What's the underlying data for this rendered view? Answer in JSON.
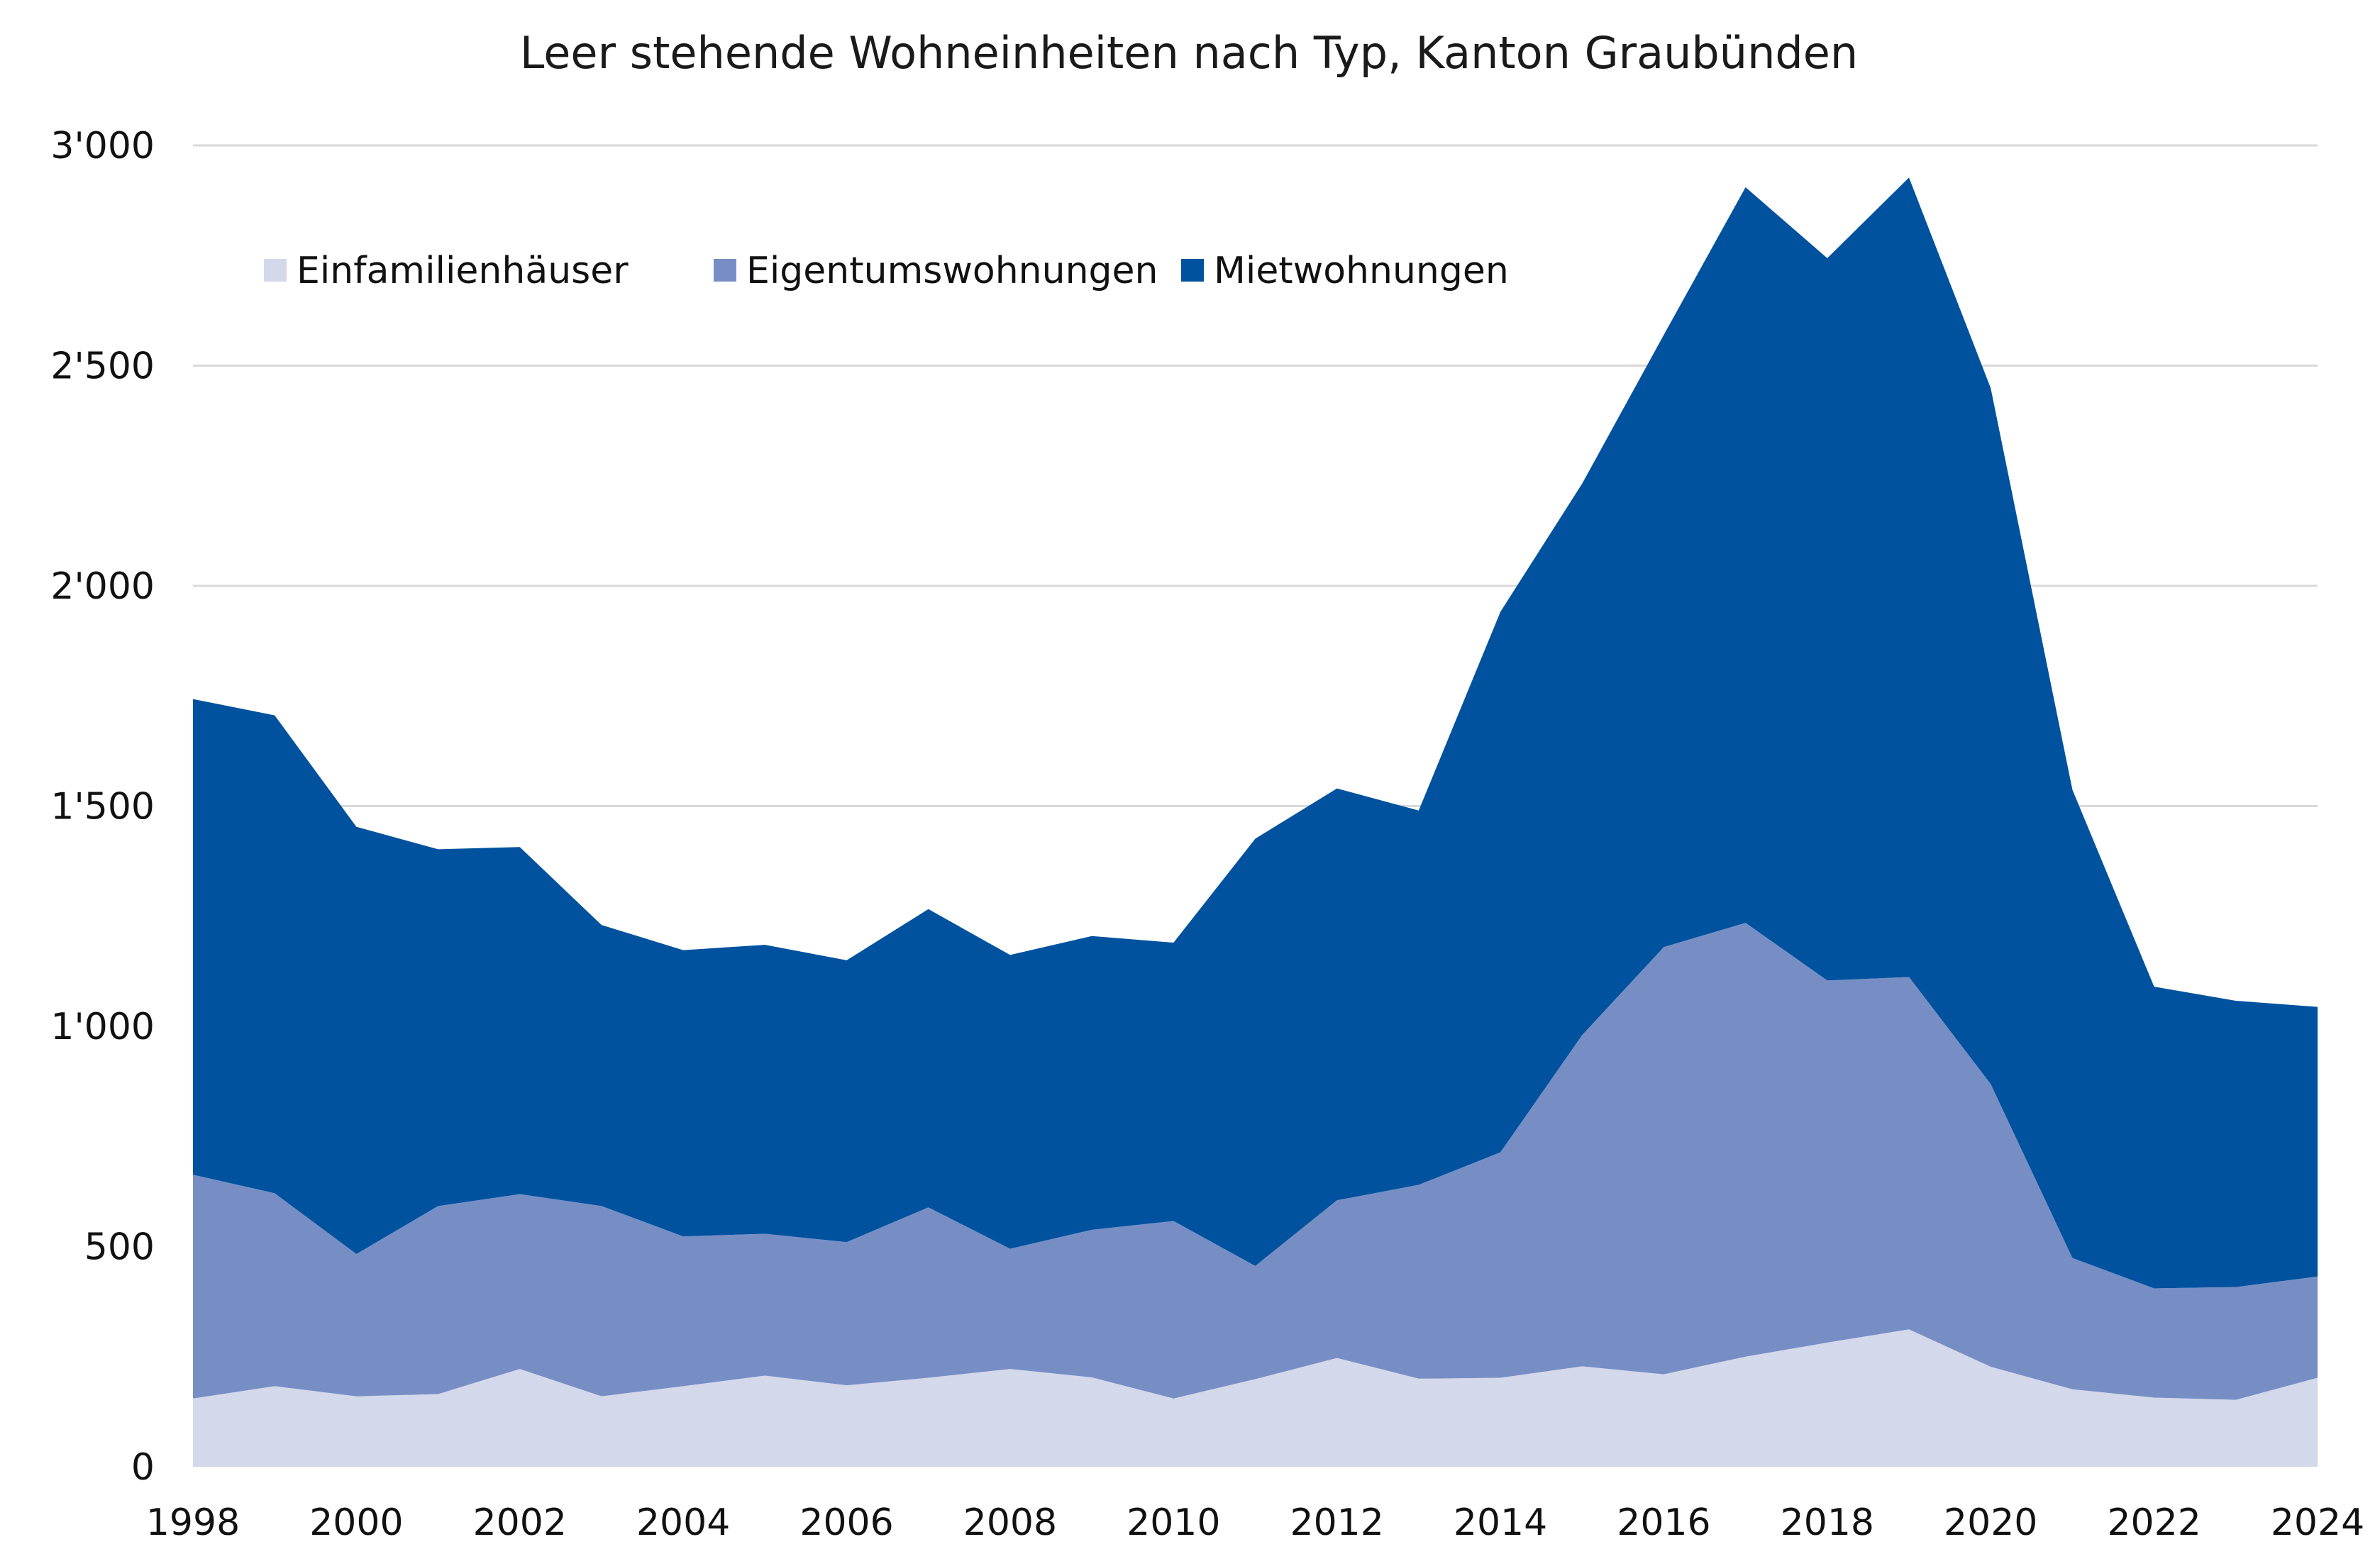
{
  "chart_data": {
    "type": "area",
    "stacked": true,
    "title": "Leer stehende Wohneinheiten nach Typ, Kanton Graubünden",
    "xlabel": "",
    "ylabel": "",
    "ylim": [
      0,
      3000
    ],
    "xlim": [
      1998,
      2024
    ],
    "grid": "horizontal",
    "legend_position": "top-left",
    "y_ticks": [
      0,
      500,
      1000,
      1500,
      2000,
      2500,
      3000
    ],
    "y_tick_labels": [
      "0",
      "500",
      "1'000",
      "1'500",
      "2'000",
      "2'500",
      "3'000"
    ],
    "x_ticks": [
      1998,
      2000,
      2002,
      2004,
      2006,
      2008,
      2010,
      2012,
      2014,
      2016,
      2018,
      2020,
      2022,
      2024
    ],
    "x_tick_labels": [
      "1998",
      "2000",
      "2002",
      "2004",
      "2006",
      "2008",
      "2010",
      "2012",
      "2014",
      "2016",
      "2018",
      "2020",
      "2022",
      "2024"
    ],
    "x": [
      1998,
      1999,
      2000,
      2001,
      2002,
      2003,
      2004,
      2005,
      2006,
      2007,
      2008,
      2009,
      2010,
      2011,
      2012,
      2013,
      2014,
      2015,
      2016,
      2017,
      2018,
      2019,
      2020,
      2021,
      2022,
      2023,
      2024
    ],
    "series": [
      {
        "name": "Einfamilienhäuser",
        "color": "#d3d8ea",
        "values": [
          155,
          183,
          160,
          165,
          222,
          160,
          183,
          207,
          185,
          202,
          222,
          203,
          155,
          199,
          247,
          200,
          202,
          228,
          210,
          250,
          282,
          312,
          227,
          176,
          157,
          152,
          202
        ]
      },
      {
        "name": "Eigentumswohnungen",
        "color": "#778ec5",
        "values": [
          508,
          438,
          323,
          427,
          397,
          432,
          340,
          322,
          325,
          387,
          273,
          335,
          403,
          257,
          358,
          440,
          512,
          752,
          970,
          985,
          822,
          800,
          642,
          298,
          248,
          256,
          230
        ]
      },
      {
        "name": "Mietwohnungen",
        "color": "#00529e",
        "values": [
          1080,
          1085,
          970,
          810,
          788,
          638,
          650,
          656,
          640,
          677,
          667,
          667,
          632,
          970,
          935,
          850,
          1227,
          1252,
          1390,
          1670,
          1640,
          1815,
          1580,
          1063,
          685,
          650,
          612
        ]
      }
    ]
  }
}
